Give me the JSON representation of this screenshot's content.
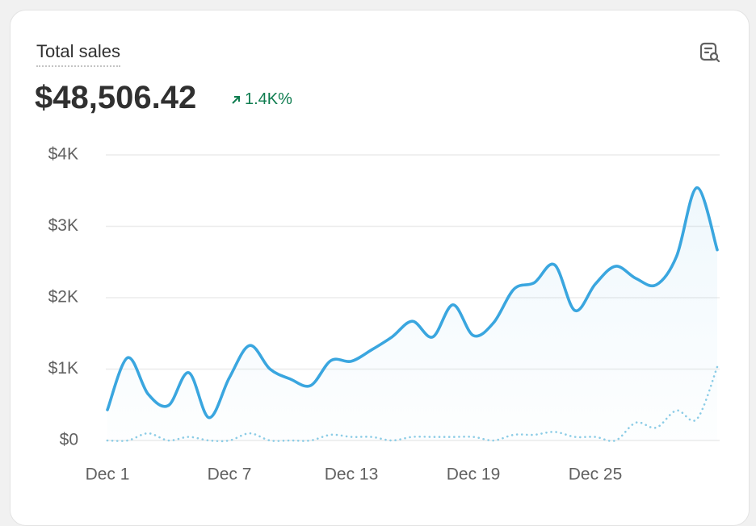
{
  "header": {
    "title": "Total sales",
    "value": "$48,506.42",
    "change": "1.4K%"
  },
  "chart_data": {
    "type": "line",
    "categories": [
      "Dec 1",
      null,
      null,
      null,
      null,
      null,
      "Dec 7",
      null,
      null,
      null,
      null,
      null,
      "Dec 13",
      null,
      null,
      null,
      null,
      null,
      "Dec 19",
      null,
      null,
      null,
      null,
      null,
      "Dec 25",
      null,
      null,
      null,
      null,
      null,
      null
    ],
    "series": [
      {
        "color": "#3aa6df",
        "style": "solid",
        "values": [
          430,
          1160,
          650,
          490,
          950,
          320,
          880,
          1330,
          1000,
          860,
          770,
          1120,
          1110,
          1270,
          1450,
          1670,
          1450,
          1900,
          1470,
          1650,
          2120,
          2210,
          2460,
          1820,
          2190,
          2440,
          2270,
          2180,
          2580,
          3540,
          2670
        ]
      },
      {
        "color": "#8dcde6",
        "style": "dotted",
        "values": [
          0,
          0,
          100,
          0,
          50,
          0,
          0,
          100,
          0,
          0,
          0,
          80,
          50,
          50,
          0,
          50,
          50,
          50,
          50,
          0,
          80,
          80,
          120,
          50,
          50,
          0,
          250,
          180,
          420,
          300,
          1030
        ]
      }
    ],
    "ylim": [
      0,
      4000
    ],
    "yticks": [
      {
        "value": 0,
        "label": "$0"
      },
      {
        "value": 1000,
        "label": "$1K"
      },
      {
        "value": 2000,
        "label": "$2K"
      },
      {
        "value": 3000,
        "label": "$3K"
      },
      {
        "value": 4000,
        "label": "$4K"
      }
    ],
    "grid": true
  }
}
